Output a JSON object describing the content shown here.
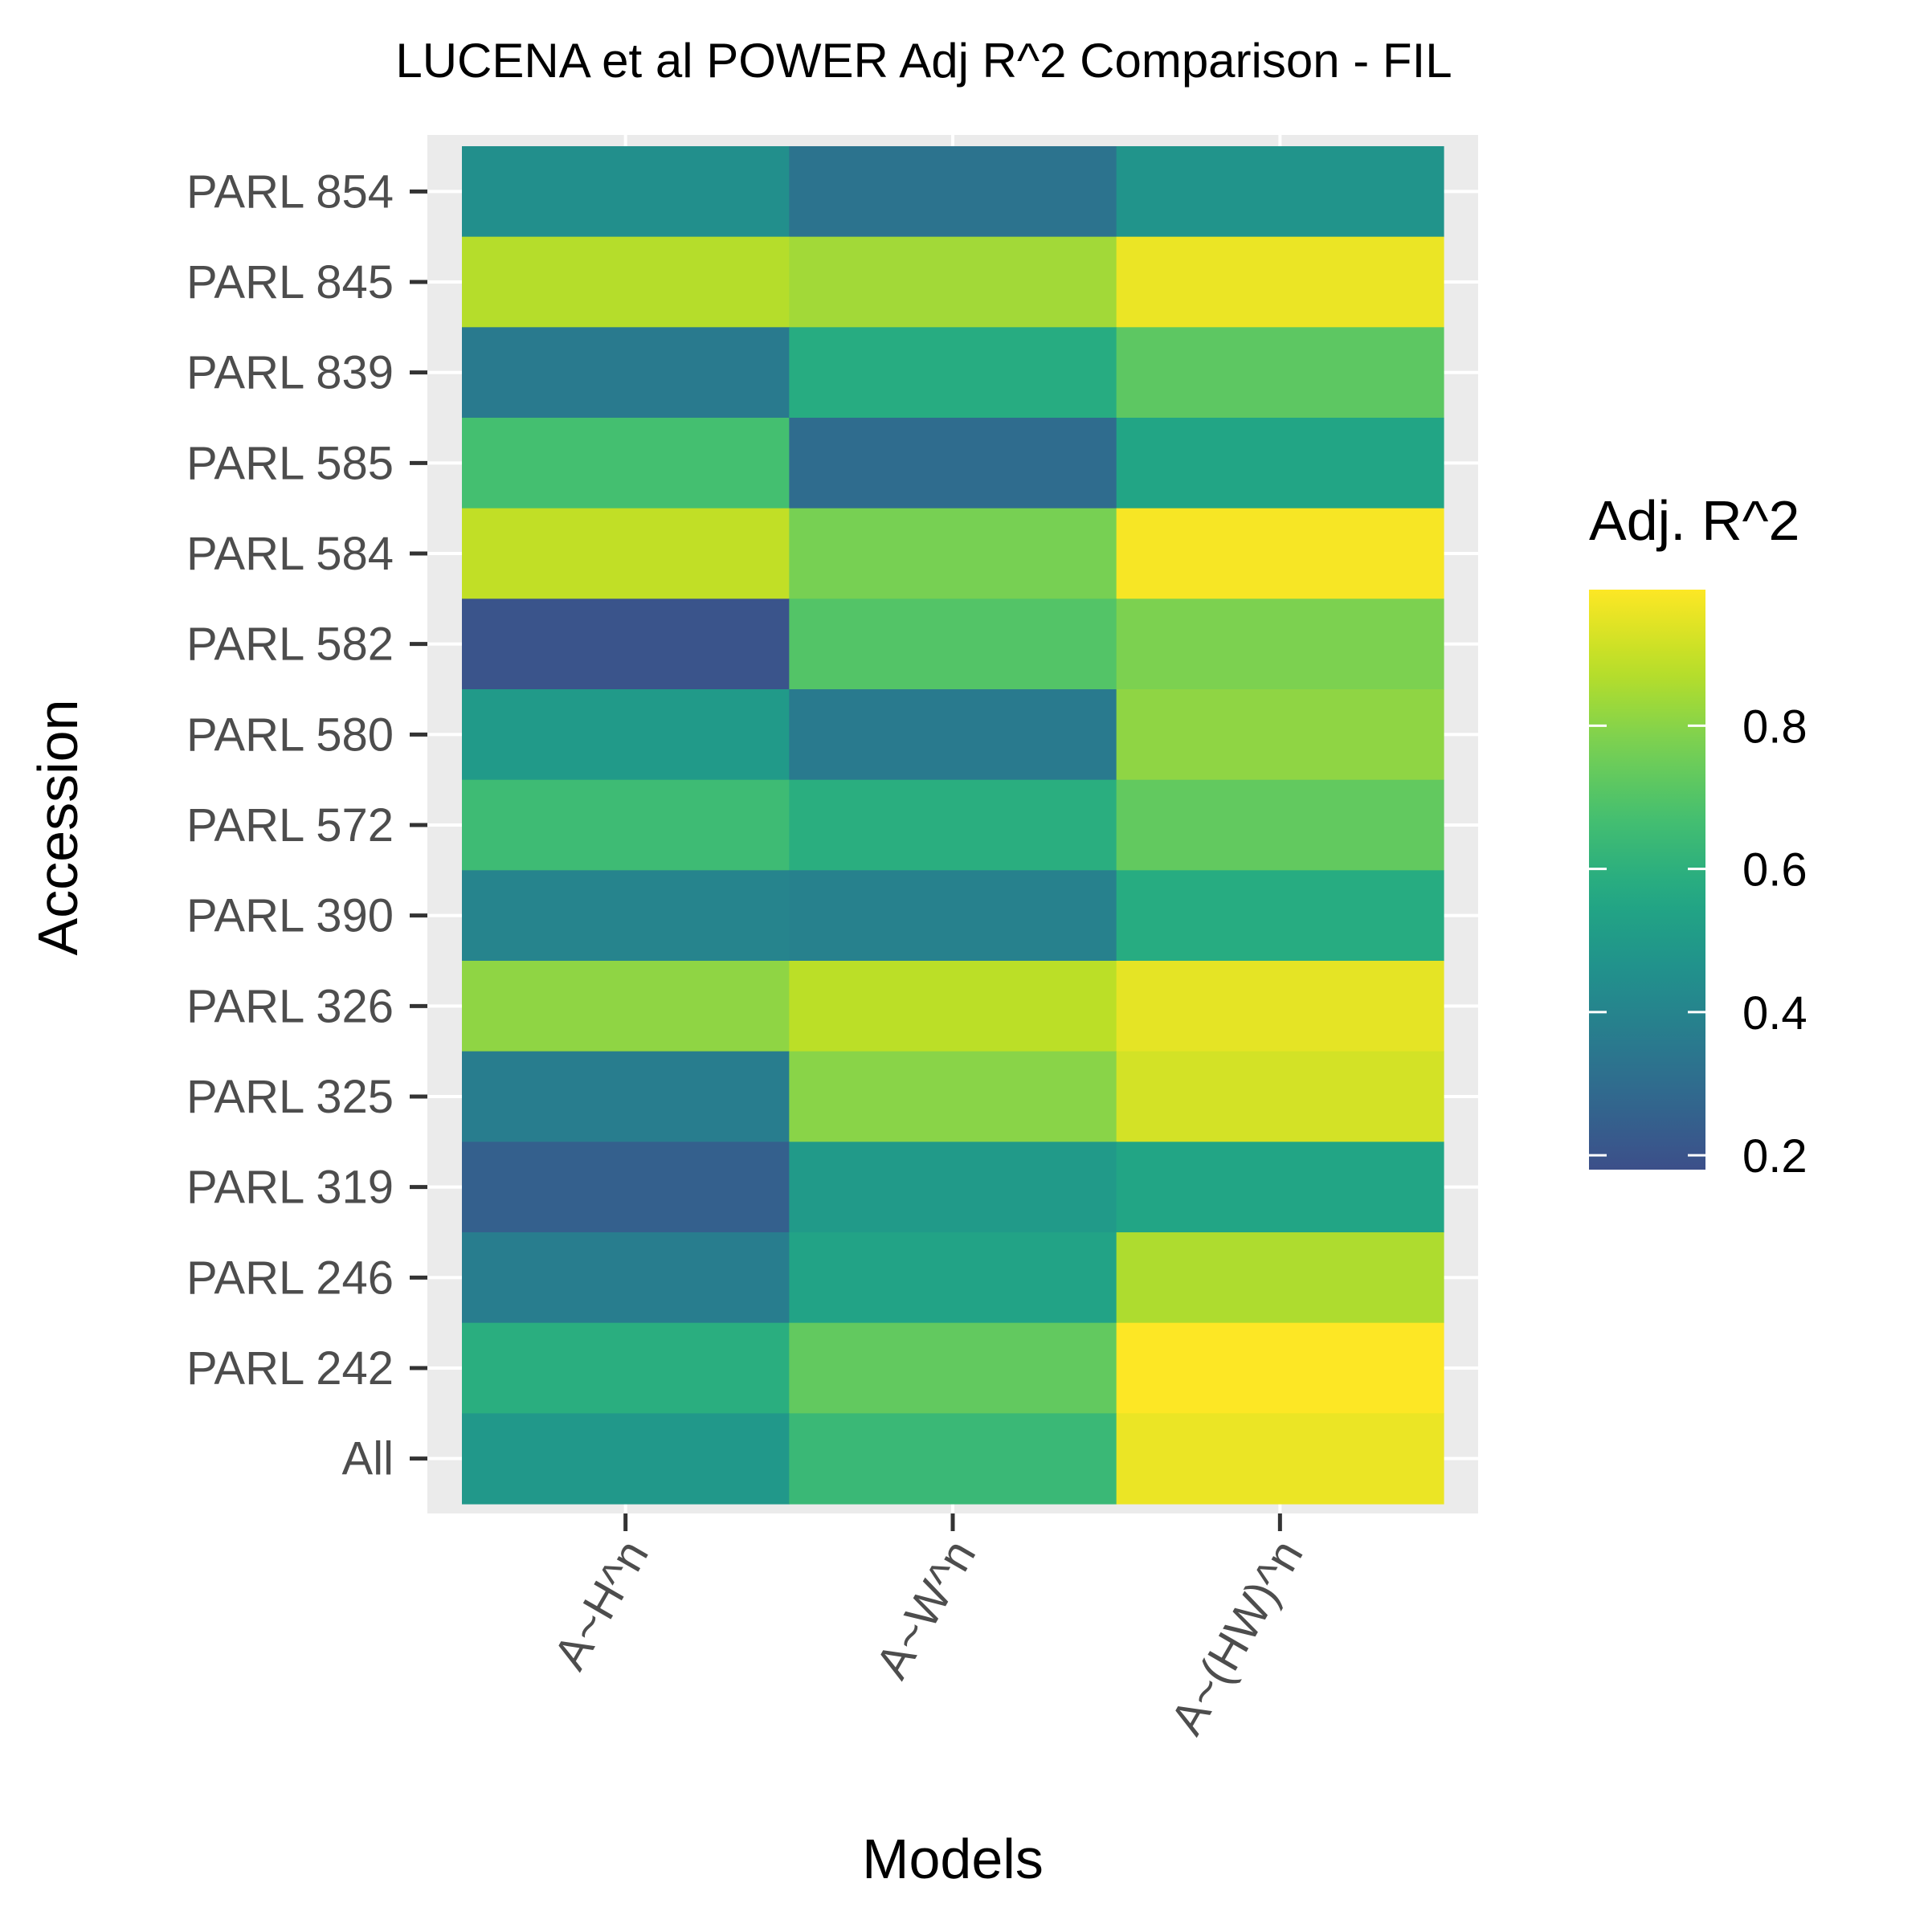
{
  "chart_data": {
    "type": "heatmap",
    "title": "LUCENA et al POWER Adj R^2 Comparison - FIL",
    "xlabel": "Models",
    "ylabel": "Accession",
    "x_categories": [
      "A~H^n",
      "A~W^n",
      "A~(HW)^n"
    ],
    "y_categories": [
      "PARL 854",
      "PARL 845",
      "PARL 839",
      "PARL 585",
      "PARL 584",
      "PARL 582",
      "PARL 580",
      "PARL 572",
      "PARL 390",
      "PARL 326",
      "PARL 325",
      "PARL 319",
      "PARL 246",
      "PARL 242",
      "All"
    ],
    "values": [
      [
        0.45,
        0.33,
        0.47
      ],
      [
        0.87,
        0.84,
        0.96
      ],
      [
        0.36,
        0.58,
        0.72
      ],
      [
        0.67,
        0.3,
        0.55
      ],
      [
        0.89,
        0.77,
        0.98
      ],
      [
        0.2,
        0.7,
        0.78
      ],
      [
        0.5,
        0.36,
        0.81
      ],
      [
        0.65,
        0.59,
        0.73
      ],
      [
        0.4,
        0.39,
        0.58
      ],
      [
        0.81,
        0.88,
        0.95
      ],
      [
        0.37,
        0.8,
        0.92
      ],
      [
        0.25,
        0.5,
        0.55
      ],
      [
        0.37,
        0.54,
        0.86
      ],
      [
        0.59,
        0.73,
        0.99
      ],
      [
        0.49,
        0.64,
        0.96
      ]
    ],
    "legend": {
      "title": "Adj. R^2",
      "position": "right",
      "ticks": [
        "0.2",
        "0.4",
        "0.6",
        "0.8"
      ],
      "tick_values": [
        0.2,
        0.4,
        0.6,
        0.8
      ],
      "range": [
        0.18,
        0.99
      ]
    },
    "colormap": "viridis",
    "panel_background": "#EBEBEB",
    "grid": true
  }
}
